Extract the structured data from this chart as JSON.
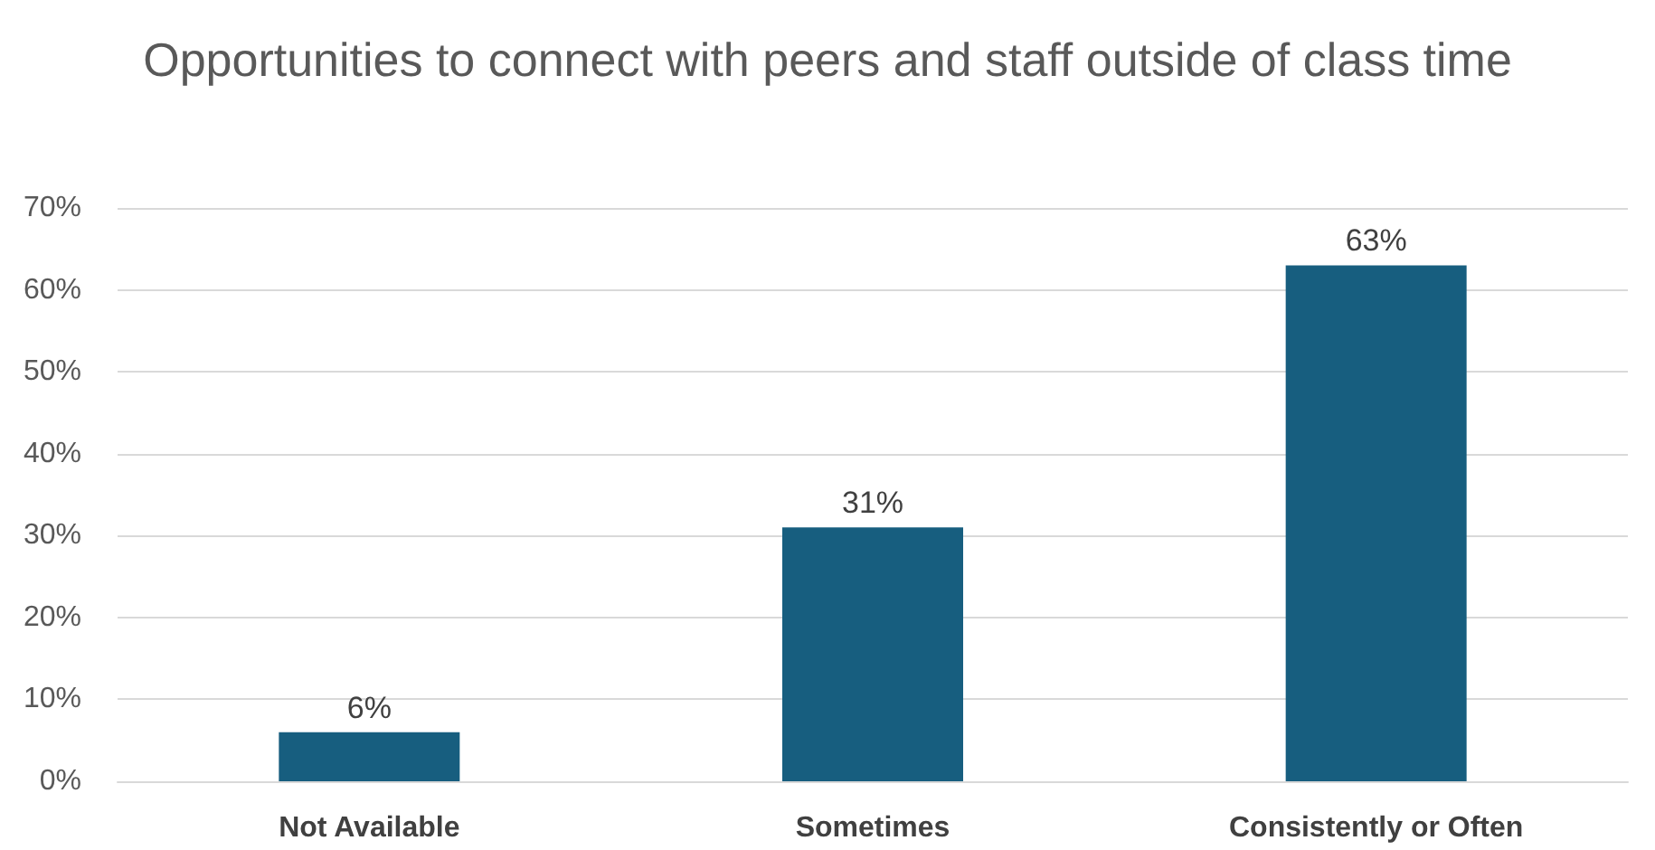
{
  "chart_data": {
    "type": "bar",
    "title": "Opportunities to connect with peers and staff outside of class time",
    "categories": [
      "Not Available",
      "Sometimes",
      "Consistently or Often"
    ],
    "values": [
      6,
      31,
      63
    ],
    "color": "#175e7f",
    "value_labels": [
      "6%",
      "31%",
      "63%"
    ],
    "ylim": [
      0,
      70
    ],
    "yticks": [
      {
        "value": 0,
        "label": "0%"
      },
      {
        "value": 10,
        "label": "10%"
      },
      {
        "value": 20,
        "label": "20%"
      },
      {
        "value": 30,
        "label": "30%"
      },
      {
        "value": 40,
        "label": "40%"
      },
      {
        "value": 50,
        "label": "50%"
      },
      {
        "value": 60,
        "label": "60%"
      },
      {
        "value": 70,
        "label": "70%"
      }
    ],
    "grid": "y"
  }
}
